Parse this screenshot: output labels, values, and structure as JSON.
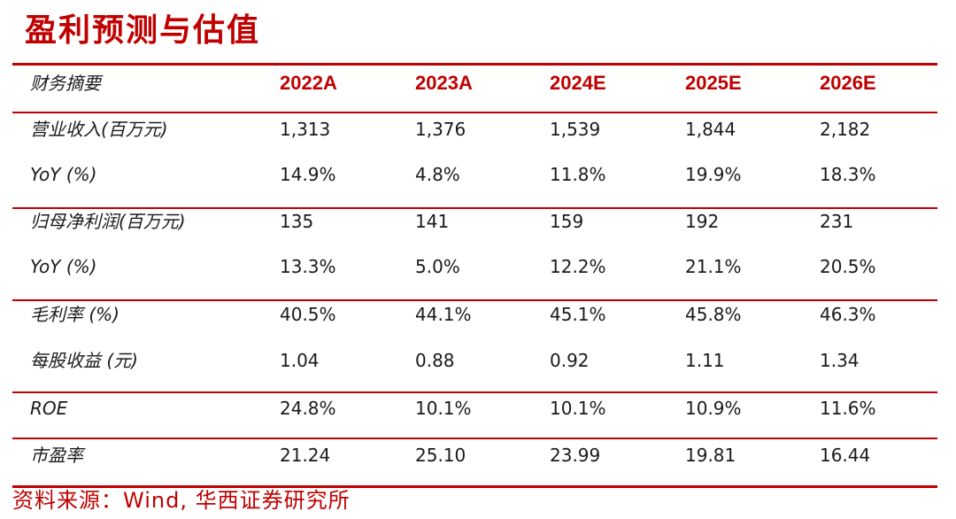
{
  "title": "盈利预测与估值",
  "source": "资料来源：Wind, 华西证券研究所",
  "header": {
    "label": "财务摘要",
    "years": [
      "2022A",
      "2023A",
      "2024E",
      "2025E",
      "2026E"
    ]
  },
  "rows": [
    {
      "label": "营业收入(百万元)",
      "values": [
        "1,313",
        "1,376",
        "1,539",
        "1,844",
        "2,182"
      ]
    },
    {
      "label": "YoY (%)",
      "values": [
        "14.9%",
        "4.8%",
        "11.8%",
        "19.9%",
        "18.3%"
      ]
    },
    {
      "label": "归母净利润(百万元)",
      "values": [
        "135",
        "141",
        "159",
        "192",
        "231"
      ]
    },
    {
      "label": "YoY (%)",
      "values": [
        "13.3%",
        "5.0%",
        "12.2%",
        "21.1%",
        "20.5%"
      ]
    },
    {
      "label": "毛利率 (%)",
      "values": [
        "40.5%",
        "44.1%",
        "45.1%",
        "45.8%",
        "46.3%"
      ]
    },
    {
      "label": "每股收益 (元)",
      "values": [
        "1.04",
        "0.88",
        "0.92",
        "1.11",
        "1.34"
      ]
    },
    {
      "label": "ROE",
      "values": [
        "24.8%",
        "10.1%",
        "10.1%",
        "10.9%",
        "11.6%"
      ]
    },
    {
      "label": "市盈率",
      "values": [
        "21.24",
        "25.10",
        "23.99",
        "19.81",
        "16.44"
      ]
    }
  ],
  "colors": {
    "accent": "#c00000",
    "text": "#1a1a1a"
  }
}
